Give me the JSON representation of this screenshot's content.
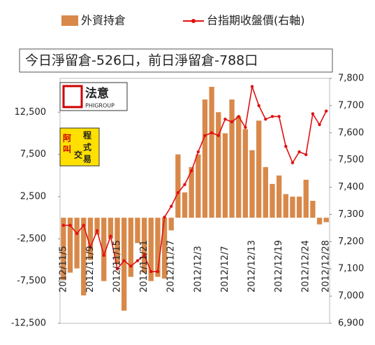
{
  "chart_data": {
    "type": "bar",
    "annotation": "今日淨留倉-526口，前日淨留倉-788口",
    "categories": [
      "2012/11/5",
      null,
      null,
      null,
      "2012/11/9",
      null,
      null,
      null,
      "2012/11/15",
      null,
      null,
      null,
      "2012/11/21",
      null,
      null,
      null,
      "2012/11/27",
      null,
      null,
      null,
      "2012/12/3",
      null,
      null,
      null,
      "2012/12/7",
      null,
      null,
      null,
      "2012/12/13",
      null,
      null,
      null,
      "2012/12/19",
      null,
      null,
      null,
      "2012/12/24",
      null,
      null,
      "2012/12/28"
    ],
    "series": [
      {
        "name": "外資持倉",
        "color": "#d8894a",
        "axis": "y",
        "values": [
          -7400,
          -6500,
          -6000,
          -9200,
          -5000,
          -2000,
          -7500,
          -2500,
          -5500,
          -11000,
          -7000,
          -3000,
          -6500,
          -7500,
          -7000,
          -7200,
          -1500,
          7500,
          3000,
          6000,
          7500,
          14000,
          15500,
          12500,
          10000,
          14000,
          12000,
          10500,
          8000,
          11500,
          6000,
          4000,
          5000,
          2800,
          2500,
          2500,
          4500,
          2000,
          -788,
          -526
        ]
      },
      {
        "name": "台指期收盤價(右軸)",
        "color": "#e01010",
        "axis": "y2",
        "type": "line",
        "values": [
          7260,
          7260,
          7230,
          7260,
          7180,
          7240,
          7150,
          7220,
          7100,
          7130,
          7110,
          7130,
          7150,
          7090,
          7090,
          7290,
          7330,
          7380,
          7410,
          7460,
          7530,
          7590,
          7600,
          7590,
          7650,
          7640,
          7660,
          7620,
          7770,
          7700,
          7650,
          7660,
          7660,
          7550,
          7490,
          7530,
          7520,
          7670,
          7630,
          7680
        ]
      }
    ],
    "ylim": [
      -12500,
      16500
    ],
    "yticks": [
      {
        "value": -12500,
        "label": "-12,500"
      },
      {
        "value": -7500,
        "label": "-7,500"
      },
      {
        "value": -2500,
        "label": "-2,500"
      },
      {
        "value": 2500,
        "label": "2,500"
      },
      {
        "value": 7500,
        "label": "7,500"
      },
      {
        "value": 12500,
        "label": "12,500"
      }
    ],
    "y2lim": [
      6900,
      7800
    ],
    "y2ticks": [
      {
        "value": 6900,
        "label": "6,900"
      },
      {
        "value": 7000,
        "label": "7,000"
      },
      {
        "value": 7100,
        "label": "7,100"
      },
      {
        "value": 7200,
        "label": "7,200"
      },
      {
        "value": 7300,
        "label": "7,300"
      },
      {
        "value": 7400,
        "label": "7,400"
      },
      {
        "value": 7500,
        "label": "7,500"
      },
      {
        "value": 7600,
        "label": "7,600"
      },
      {
        "value": 7700,
        "label": "7,700"
      },
      {
        "value": 7800,
        "label": "7,800"
      }
    ]
  },
  "logo": {
    "name": "法意",
    "sub": "PHIGROUP",
    "chars": [
      "阿",
      "叫",
      "程",
      "式",
      "交",
      "易"
    ]
  }
}
